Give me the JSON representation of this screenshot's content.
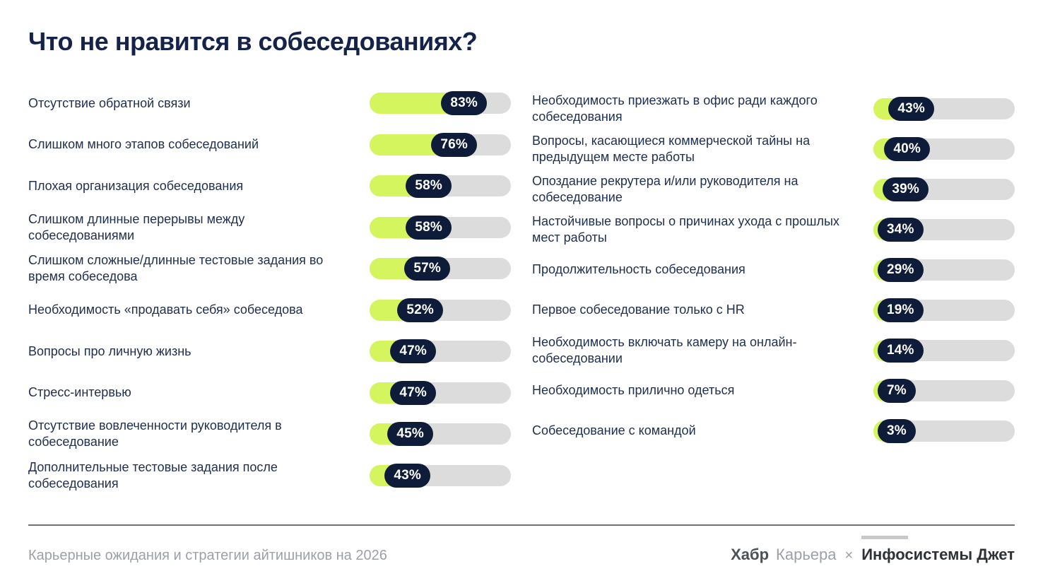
{
  "header": {
    "title": "Что не нравится в собеседованиях?"
  },
  "chart_data": {
    "type": "bar",
    "orientation": "horizontal",
    "title": "Что не нравится в собеседованиях?",
    "value_suffix": "%",
    "value_range": [
      0,
      100
    ],
    "legend": "none",
    "grid": false,
    "groups": [
      {
        "name": "left-column",
        "items": [
          {
            "label": "Отсутствие обратной связи",
            "value": 83
          },
          {
            "label": "Слишком много этапов собеседований",
            "value": 76
          },
          {
            "label": "Плохая организация собеседования",
            "value": 58
          },
          {
            "label": "Слишком длинные перерывы между собеседованиями",
            "value": 58
          },
          {
            "label": "Слишком сложные/длинные тестовые задания во время собеседова",
            "value": 57
          },
          {
            "label": "Необходимость «продавать себя» собеседова",
            "value": 52
          },
          {
            "label": "Вопросы про личную жизнь",
            "value": 47
          },
          {
            "label": "Стресс-интервью",
            "value": 47
          },
          {
            "label": "Отсутствие вовлеченности руководителя в собеседование",
            "value": 45
          },
          {
            "label": "Дополнительные тестовые задания после собеседования",
            "value": 43
          }
        ]
      },
      {
        "name": "right-column",
        "items": [
          {
            "label": "Необходимость приезжать в офис ради каждого собеседования",
            "value": 43
          },
          {
            "label": "Вопросы, касающиеся коммерческой тайны на предыдущем месте работы",
            "value": 40
          },
          {
            "label": "Опоздание рекрутера и/или руководителя на собеседование",
            "value": 39
          },
          {
            "label": "Настойчивые вопросы о причинах ухода с прошлых мест работы",
            "value": 34
          },
          {
            "label": "Продолжительность собеседования",
            "value": 29
          },
          {
            "label": "Первое собеседование только с HR",
            "value": 19
          },
          {
            "label": "Необходимость включать камеру на онлайн-собеседовании",
            "value": 14
          },
          {
            "label": "Необходимость прилично одеться",
            "value": 7
          },
          {
            "label": "Собеседование с командой",
            "value": 3
          }
        ]
      }
    ]
  },
  "footer": {
    "source": "Карьерные ожидания и стратегии айтишников на 2026",
    "brands": {
      "habr_bold": "Хабр",
      "habr_light": "Карьера",
      "separator": "×",
      "partner": "Инфосистемы Джет"
    }
  },
  "colors": {
    "background": "#ffffff",
    "title_navy": "#15234a",
    "label_navy": "#20304f",
    "bar_fill_green": "#d5f55f",
    "badge_navy": "#0e1c39",
    "badge_text": "#ffffff",
    "track_gray": "#dcdcdc",
    "footer_text_gray": "#9ca1a8",
    "divider_gray": "#6e7175"
  }
}
